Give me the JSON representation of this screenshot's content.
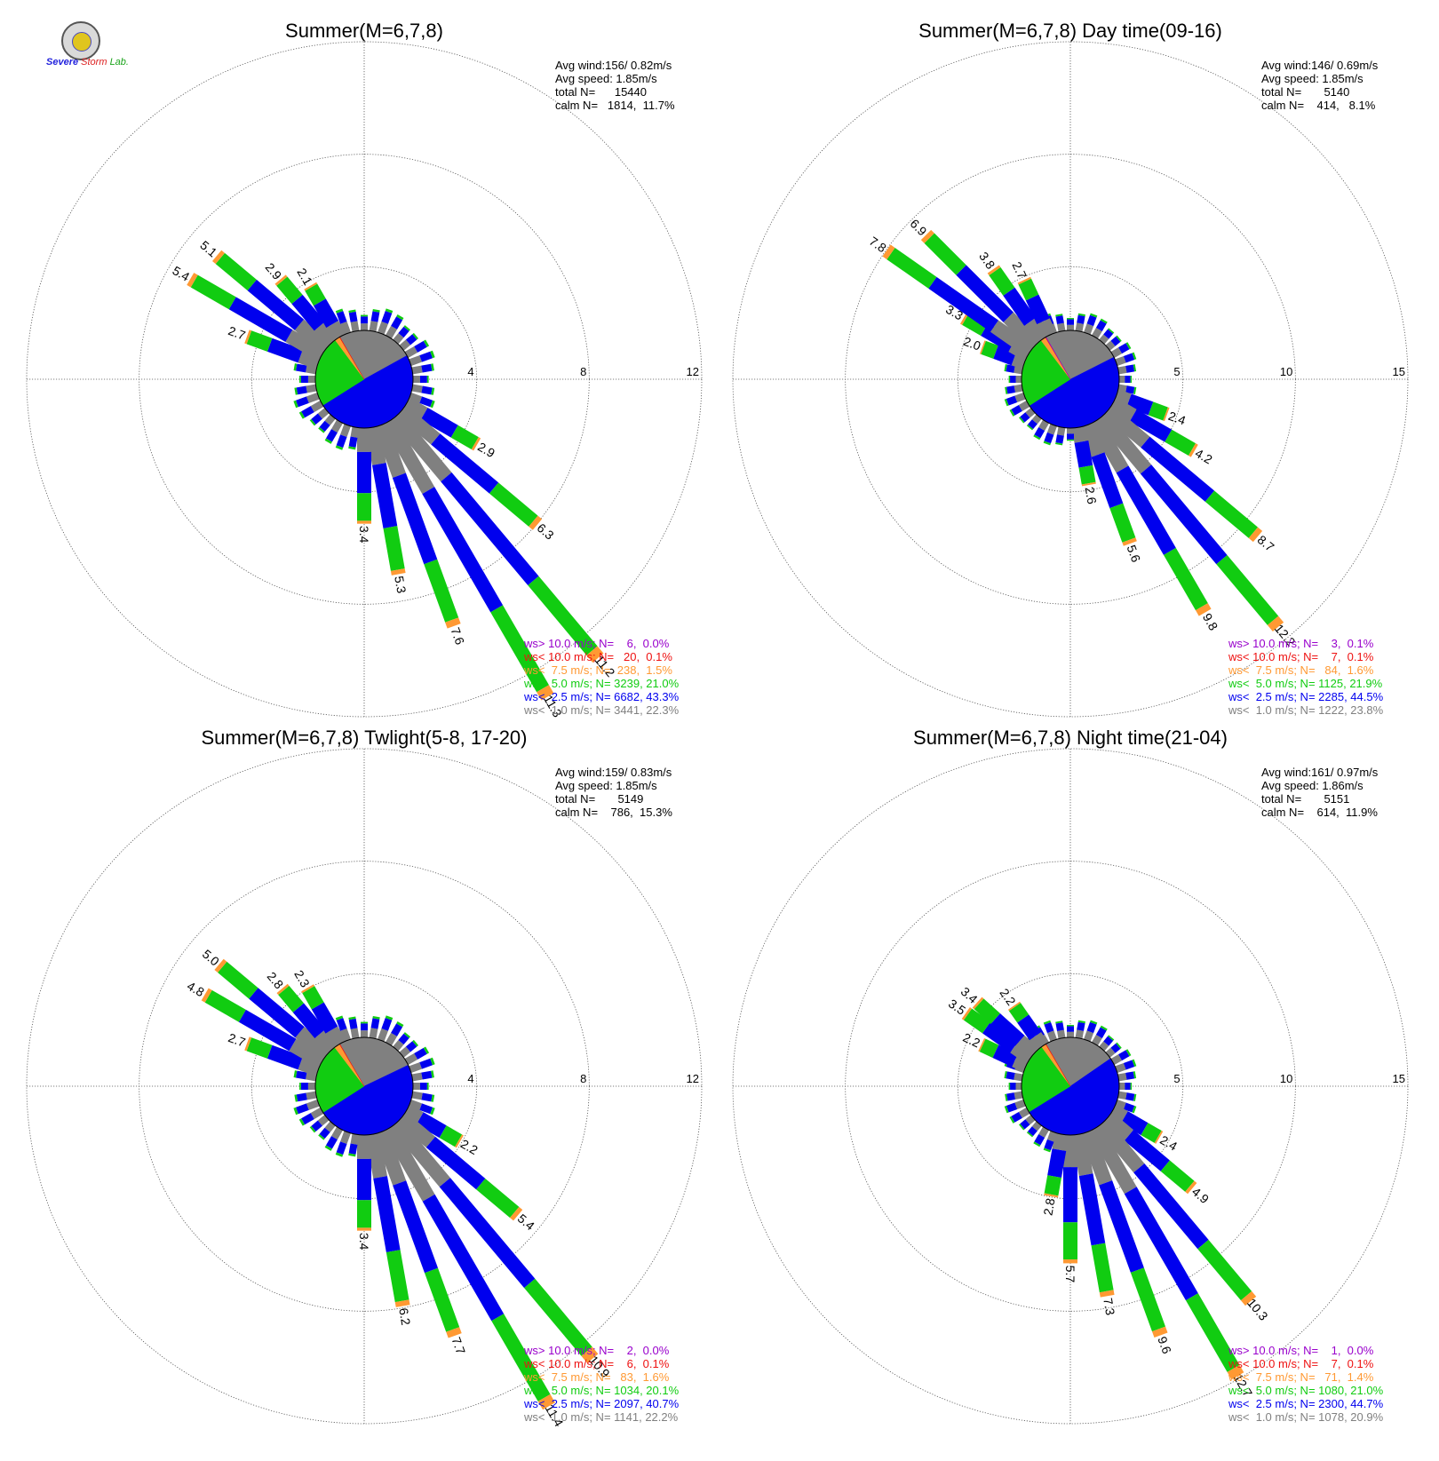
{
  "logo": {
    "word1": "Severe",
    "word2": "Storm",
    "word3": "Lab."
  },
  "legend_colors": {
    "gt10": "#9900cc",
    "lt10": "#ee1111",
    "lt7_5": "#ff9933",
    "lt5": "#11cc11",
    "lt2_5": "#0000ee",
    "lt1": "#808080"
  },
  "chart_data": [
    {
      "type": "polar-bar",
      "title": "Summer(M=6,7,8)",
      "rings": [
        4,
        8,
        12
      ],
      "rmax": 12,
      "stats": [
        "Avg wind:156/ 0.82m/s",
        "Avg speed: 1.85m/s",
        "total N=      15440",
        "calm N=   1814,  11.7%"
      ],
      "legend": [
        {
          "label": "ws> 10.0 m/s; N=    6,  0.0%",
          "color": "#9900cc"
        },
        {
          "label": "ws< 10.0 m/s; N=   20,  0.1%",
          "color": "#ee1111"
        },
        {
          "label": "ws<  7.5 m/s; N=  238,  1.5%",
          "color": "#ff9933"
        },
        {
          "label": "ws<  5.0 m/s; N= 3239, 21.0%",
          "color": "#11cc11"
        },
        {
          "label": "ws<  2.5 m/s; N= 6682, 43.3%",
          "color": "#0000ee"
        },
        {
          "label": "ws<  1.0 m/s; N= 3441, 22.3%",
          "color": "#808080"
        }
      ],
      "pie": [
        22.3,
        43.3,
        21.0,
        1.5,
        0.1,
        0.0
      ],
      "bars": [
        {
          "dir": 120,
          "total": 2.9,
          "label": "2.9"
        },
        {
          "dir": 130,
          "total": 6.3,
          "label": "6.3"
        },
        {
          "dir": 140,
          "total": 11.2,
          "label": "11.2"
        },
        {
          "dir": 150,
          "total": 11.3,
          "label": "11.3"
        },
        {
          "dir": 160,
          "total": 7.6,
          "label": "7.6"
        },
        {
          "dir": 170,
          "total": 5.3,
          "label": "5.3"
        },
        {
          "dir": 180,
          "total": 3.4,
          "label": "3.4"
        },
        {
          "dir": 290,
          "total": 2.7,
          "label": "2.7"
        },
        {
          "dir": 300,
          "total": 5.4,
          "label": "5.4"
        },
        {
          "dir": 310,
          "total": 5.1,
          "label": "5.1"
        },
        {
          "dir": 320,
          "total": 2.9,
          "label": "2.9"
        },
        {
          "dir": 330,
          "total": 2.1,
          "label": "2.1"
        }
      ]
    },
    {
      "type": "polar-bar",
      "title": "Summer(M=6,7,8) Day time(09-16)",
      "rings": [
        5,
        10,
        15
      ],
      "rmax": 15,
      "stats": [
        "Avg wind:146/ 0.69m/s",
        "Avg speed: 1.85m/s",
        "total N=       5140",
        "calm N=    414,   8.1%"
      ],
      "legend": [
        {
          "label": "ws> 10.0 m/s; N=    3,  0.1%",
          "color": "#9900cc"
        },
        {
          "label": "ws< 10.0 m/s; N=    7,  0.1%",
          "color": "#ee1111"
        },
        {
          "label": "ws<  7.5 m/s; N=   84,  1.6%",
          "color": "#ff9933"
        },
        {
          "label": "ws<  5.0 m/s; N= 1125, 21.9%",
          "color": "#11cc11"
        },
        {
          "label": "ws<  2.5 m/s; N= 2285, 44.5%",
          "color": "#0000ee"
        },
        {
          "label": "ws<  1.0 m/s; N= 1222, 23.8%",
          "color": "#808080"
        }
      ],
      "pie": [
        23.8,
        44.5,
        21.9,
        1.6,
        0.1,
        0.1
      ],
      "bars": [
        {
          "dir": 110,
          "total": 2.4,
          "label": "2.4"
        },
        {
          "dir": 120,
          "total": 4.2,
          "label": "4.2"
        },
        {
          "dir": 130,
          "total": 8.7,
          "label": "8.7"
        },
        {
          "dir": 140,
          "total": 12.2,
          "label": "12.2"
        },
        {
          "dir": 150,
          "total": 9.8,
          "label": "9.8"
        },
        {
          "dir": 160,
          "total": 5.6,
          "label": "5.6"
        },
        {
          "dir": 170,
          "total": 2.6,
          "label": "2.6"
        },
        {
          "dir": 290,
          "total": 2.0,
          "label": "2.0"
        },
        {
          "dir": 300,
          "total": 3.3,
          "label": "3.3"
        },
        {
          "dir": 305,
          "total": 7.8,
          "label": "7.8"
        },
        {
          "dir": 315,
          "total": 6.9,
          "label": "6.9"
        },
        {
          "dir": 325,
          "total": 3.8,
          "label": "3.8"
        },
        {
          "dir": 335,
          "total": 2.7,
          "label": "2.7"
        }
      ]
    },
    {
      "type": "polar-bar",
      "title": "Summer(M=6,7,8) Twlight(5-8, 17-20)",
      "rings": [
        4,
        8,
        12
      ],
      "rmax": 12,
      "stats": [
        "Avg wind:159/ 0.83m/s",
        "Avg speed: 1.85m/s",
        "total N=       5149",
        "calm N=    786,  15.3%"
      ],
      "legend": [
        {
          "label": "ws> 10.0 m/s; N=    2,  0.0%",
          "color": "#9900cc"
        },
        {
          "label": "ws< 10.0 m/s; N=    6,  0.1%",
          "color": "#ee1111"
        },
        {
          "label": "ws<  7.5 m/s; N=   83,  1.6%",
          "color": "#ff9933"
        },
        {
          "label": "ws<  5.0 m/s; N= 1034, 20.1%",
          "color": "#11cc11"
        },
        {
          "label": "ws<  2.5 m/s; N= 2097, 40.7%",
          "color": "#0000ee"
        },
        {
          "label": "ws<  1.0 m/s; N= 1141, 22.2%",
          "color": "#808080"
        }
      ],
      "pie": [
        22.2,
        40.7,
        20.1,
        1.6,
        0.1,
        0.0
      ],
      "bars": [
        {
          "dir": 120,
          "total": 2.2,
          "label": "2.2"
        },
        {
          "dir": 130,
          "total": 5.4,
          "label": "5.4"
        },
        {
          "dir": 140,
          "total": 10.9,
          "label": "10.9"
        },
        {
          "dir": 150,
          "total": 11.4,
          "label": "11.4"
        },
        {
          "dir": 160,
          "total": 7.7,
          "label": "7.7"
        },
        {
          "dir": 170,
          "total": 6.2,
          "label": "6.2"
        },
        {
          "dir": 180,
          "total": 3.4,
          "label": "3.4"
        },
        {
          "dir": 290,
          "total": 2.7,
          "label": "2.7"
        },
        {
          "dir": 300,
          "total": 4.8,
          "label": "4.8"
        },
        {
          "dir": 310,
          "total": 5.0,
          "label": "5.0"
        },
        {
          "dir": 320,
          "total": 2.8,
          "label": "2.8"
        },
        {
          "dir": 330,
          "total": 2.3,
          "label": "2.3"
        }
      ]
    },
    {
      "type": "polar-bar",
      "title": "Summer(M=6,7,8) Night time(21-04)",
      "rings": [
        5,
        10,
        15
      ],
      "rmax": 15,
      "stats": [
        "Avg wind:161/ 0.97m/s",
        "Avg speed: 1.86m/s",
        "total N=       5151",
        "calm N=    614,  11.9%"
      ],
      "legend": [
        {
          "label": "ws> 10.0 m/s; N=    1,  0.0%",
          "color": "#9900cc"
        },
        {
          "label": "ws< 10.0 m/s; N=    7,  0.1%",
          "color": "#ee1111"
        },
        {
          "label": "ws<  7.5 m/s; N=   71,  1.4%",
          "color": "#ff9933"
        },
        {
          "label": "ws<  5.0 m/s; N= 1080, 21.0%",
          "color": "#11cc11"
        },
        {
          "label": "ws<  2.5 m/s; N= 2300, 44.7%",
          "color": "#0000ee"
        },
        {
          "label": "ws<  1.0 m/s; N= 1078, 20.9%",
          "color": "#808080"
        }
      ],
      "pie": [
        20.9,
        44.7,
        21.0,
        1.4,
        0.1,
        0.0
      ],
      "bars": [
        {
          "dir": 120,
          "total": 2.4,
          "label": "2.4"
        },
        {
          "dir": 130,
          "total": 4.9,
          "label": "4.9"
        },
        {
          "dir": 140,
          "total": 10.3,
          "label": "10.3"
        },
        {
          "dir": 150,
          "total": 12.7,
          "label": "12.7"
        },
        {
          "dir": 160,
          "total": 9.6,
          "label": "9.6"
        },
        {
          "dir": 170,
          "total": 7.3,
          "label": "7.3"
        },
        {
          "dir": 180,
          "total": 5.7,
          "label": "5.7"
        },
        {
          "dir": 190,
          "total": 2.8,
          "label": "2.8"
        },
        {
          "dir": 295,
          "total": 2.2,
          "label": "2.2"
        },
        {
          "dir": 305,
          "total": 3.5,
          "label": "3.5"
        },
        {
          "dir": 312,
          "total": 3.4,
          "label": "3.4"
        },
        {
          "dir": 325,
          "total": 2.2,
          "label": "2.2"
        }
      ]
    }
  ]
}
